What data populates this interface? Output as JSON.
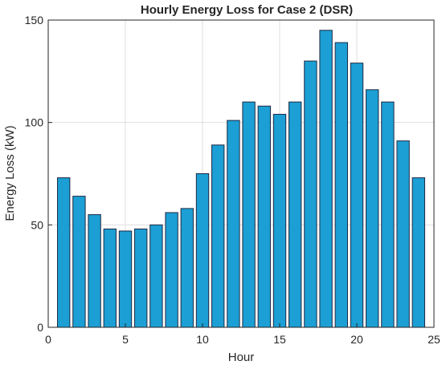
{
  "chart_data": {
    "type": "bar",
    "title": "Hourly Energy Loss for Case 2 (DSR)",
    "xlabel": "Hour",
    "ylabel": "Energy Loss (kW)",
    "x": [
      1,
      2,
      3,
      4,
      5,
      6,
      7,
      8,
      9,
      10,
      11,
      12,
      13,
      14,
      15,
      16,
      17,
      18,
      19,
      20,
      21,
      22,
      23,
      24
    ],
    "values": [
      73,
      64,
      55,
      48,
      47,
      48,
      50,
      56,
      58,
      75,
      89,
      101,
      110,
      108,
      104,
      110,
      130,
      145,
      139,
      129,
      116,
      110,
      91,
      73
    ],
    "xlim": [
      0,
      25
    ],
    "ylim": [
      0,
      150
    ],
    "xticks": [
      "0",
      "5",
      "10",
      "15",
      "20",
      "25"
    ],
    "yticks": [
      "0",
      "50",
      "100",
      "150"
    ],
    "grid": true,
    "bar_color": "#1b9fd4",
    "bar_edge_color": "#1f2a44"
  }
}
